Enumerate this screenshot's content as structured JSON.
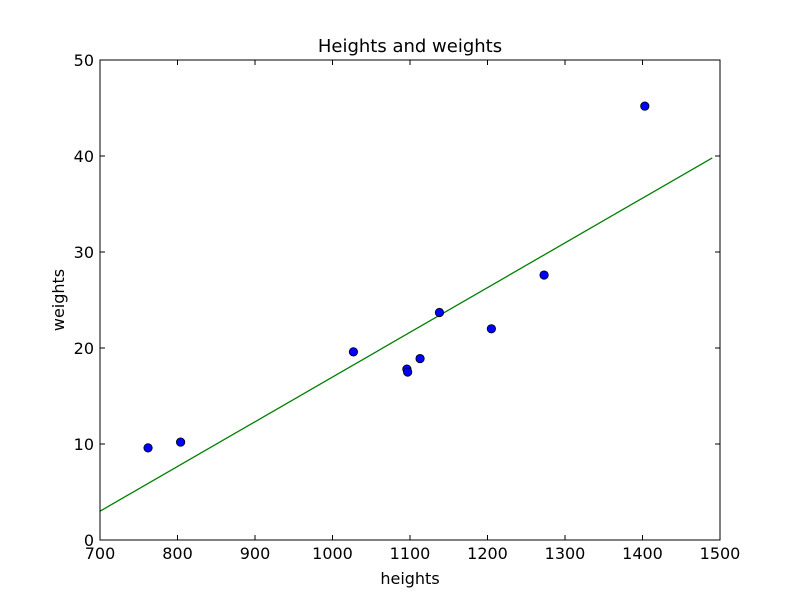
{
  "chart_data": {
    "type": "scatter",
    "title": "Heights and weights",
    "xlabel": "heights",
    "ylabel": "weights",
    "xlim": [
      700,
      1500
    ],
    "ylim": [
      0,
      50
    ],
    "xticks": [
      700,
      800,
      900,
      1000,
      1100,
      1200,
      1300,
      1400,
      1500
    ],
    "yticks": [
      0,
      10,
      20,
      30,
      40,
      50
    ],
    "grid": false,
    "legend": "none",
    "series": [
      {
        "kind": "points",
        "color": "#0000ff",
        "points": [
          {
            "x": 762,
            "y": 9.6
          },
          {
            "x": 804,
            "y": 10.2
          },
          {
            "x": 1027,
            "y": 19.6
          },
          {
            "x": 1096,
            "y": 17.8
          },
          {
            "x": 1097,
            "y": 17.5
          },
          {
            "x": 1113,
            "y": 18.9
          },
          {
            "x": 1138,
            "y": 23.7
          },
          {
            "x": 1205,
            "y": 22.0
          },
          {
            "x": 1273,
            "y": 27.6
          },
          {
            "x": 1403,
            "y": 45.2
          }
        ]
      },
      {
        "kind": "line",
        "color": "#008000",
        "points": [
          {
            "x": 700,
            "y": 3.0
          },
          {
            "x": 1490,
            "y": 39.8
          }
        ]
      }
    ]
  }
}
